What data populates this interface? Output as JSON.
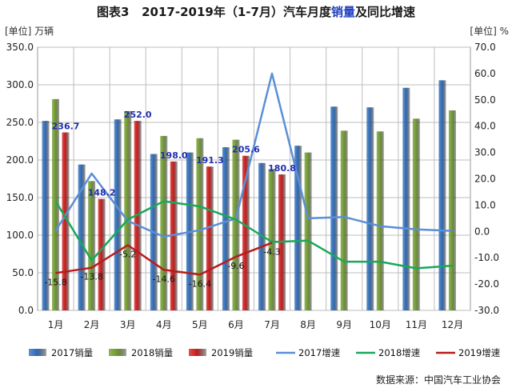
{
  "title": {
    "prefix": "图表3",
    "main": "2017-2019年（1-7月）汽车月度",
    "highlight": "销量",
    "suffix": "及同比增速"
  },
  "unit_left": "[单位] 万辆",
  "unit_right": "[单位] %",
  "source": "数据来源：中国汽车工业协会",
  "colors": {
    "bar2017": "#2e6bb8",
    "bar2018": "#6f9a2c",
    "bar2019": "#c91a1a",
    "line2017": "#5b8fd6",
    "line2018": "#1aa85a",
    "line2019": "#b81c1c",
    "label2019": "#1f2fb0",
    "grid": "#bdbdbd"
  },
  "chart_data": {
    "type": "bar",
    "categories": [
      "1月",
      "2月",
      "3月",
      "4月",
      "5月",
      "6月",
      "7月",
      "8月",
      "9月",
      "10月",
      "11月",
      "12月"
    ],
    "y_left_ticks": [
      "0.0",
      "50.0",
      "100.0",
      "150.0",
      "200.0",
      "250.0",
      "300.0",
      "350.0"
    ],
    "y_right_ticks": [
      "-30.0",
      "-20.0",
      "-10.0",
      "0.0",
      "10.0",
      "20.0",
      "30.0",
      "40.0",
      "50.0",
      "60.0",
      "70.0"
    ],
    "ylim_left": [
      0,
      350
    ],
    "ylim_right": [
      -30,
      70
    ],
    "grid": true,
    "legend_position": "bottom",
    "series": [
      {
        "name": "2017销量",
        "kind": "bar",
        "axis": "left",
        "values": [
          252.0,
          194.0,
          254.0,
          208.0,
          210.0,
          217.0,
          196.0,
          219.0,
          271.0,
          270.0,
          296.0,
          306.0
        ]
      },
      {
        "name": "2018销量",
        "kind": "bar",
        "axis": "left",
        "values": [
          281.0,
          172.0,
          265.0,
          232.0,
          229.0,
          227.0,
          188.0,
          210.0,
          239.0,
          238.0,
          255.0,
          266.0
        ]
      },
      {
        "name": "2019销量",
        "kind": "bar",
        "axis": "left",
        "values": [
          236.7,
          148.2,
          252.0,
          198.0,
          191.3,
          205.6,
          180.8,
          null,
          null,
          null,
          null,
          null
        ]
      },
      {
        "name": "2017增速",
        "kind": "line",
        "axis": "right",
        "values": [
          0.2,
          22.0,
          4.0,
          -2.0,
          0.5,
          5.0,
          60.0,
          5.0,
          5.5,
          2.0,
          0.8,
          0.2
        ]
      },
      {
        "name": "2018增速",
        "kind": "line",
        "axis": "right",
        "values": [
          11.5,
          -11.0,
          4.5,
          11.5,
          9.5,
          4.5,
          -4.0,
          -3.5,
          -11.5,
          -11.5,
          -14.0,
          -13.0
        ]
      },
      {
        "name": "2019增速",
        "kind": "line",
        "axis": "right",
        "values": [
          -15.8,
          -13.8,
          -5.2,
          -14.6,
          -16.4,
          -9.6,
          -4.3,
          null,
          null,
          null,
          null,
          null
        ]
      }
    ],
    "bar_labels_2019": [
      "236.7",
      "148.2",
      "252.0",
      "198.0",
      "191.3",
      "205.6",
      "180.8"
    ],
    "line_labels_2019": [
      "-15.8",
      "-13.8",
      "-5.2",
      "-14.6",
      "-16.4",
      "-9.6",
      "-4.3"
    ]
  }
}
